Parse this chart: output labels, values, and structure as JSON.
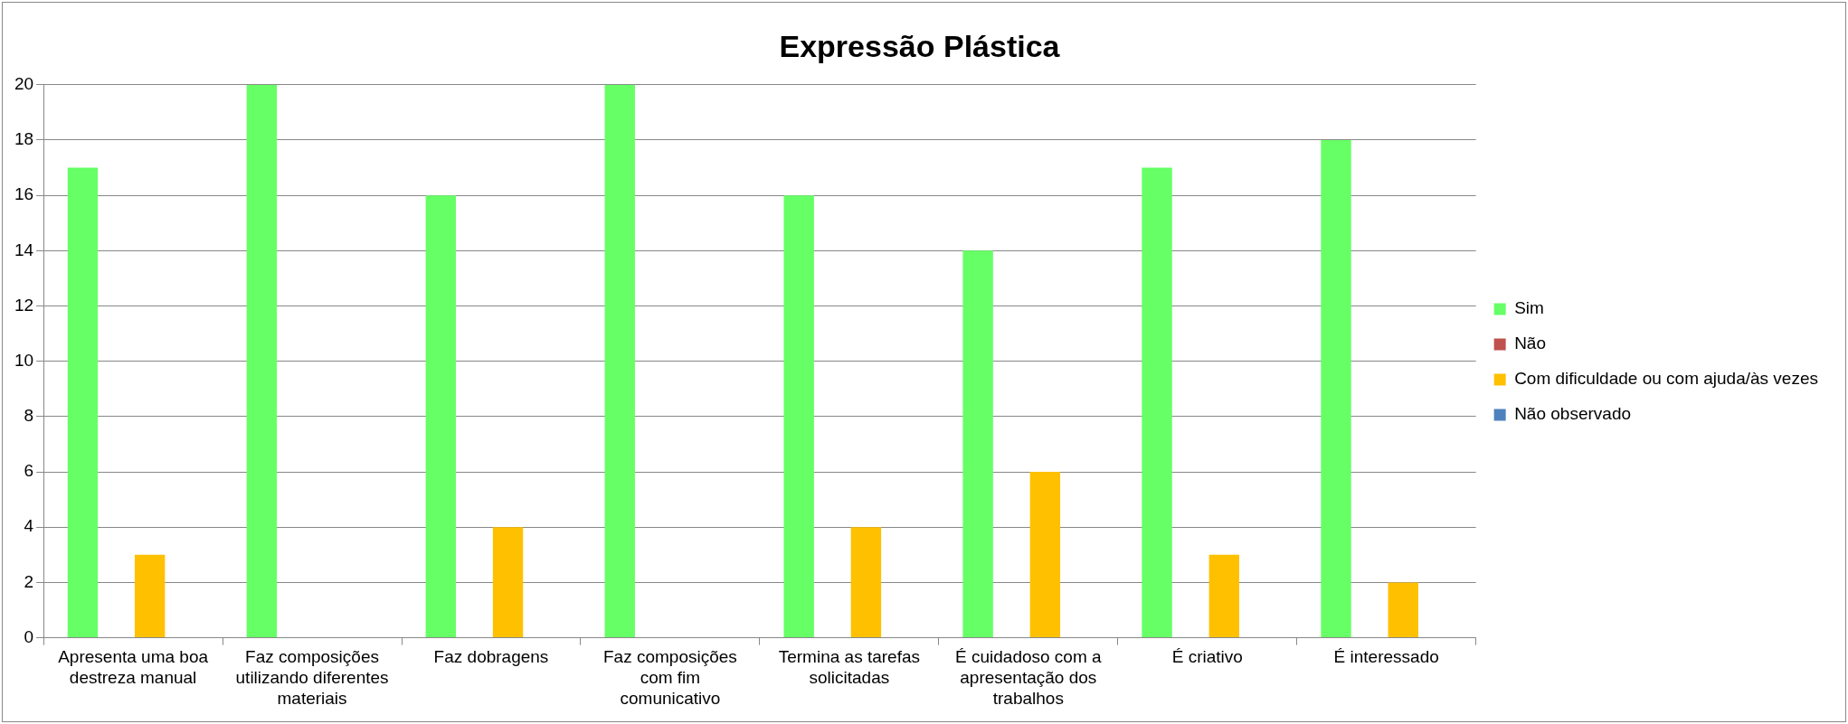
{
  "chart_data": {
    "type": "bar",
    "title": "Expressão Plástica",
    "categories": [
      "Apresenta uma boa destreza manual",
      "Faz composições utilizando diferentes materiais",
      "Faz dobragens",
      "Faz composições com fim comunicativo",
      "Termina as tarefas solicitadas",
      "É cuidadoso com a apresentação dos trabalhos",
      "É criativo",
      "É interessado"
    ],
    "series": [
      {
        "name": "Sim",
        "color": "#66ff66",
        "values": [
          17,
          20,
          16,
          20,
          16,
          14,
          17,
          18
        ]
      },
      {
        "name": "Não",
        "color": "#c0504d",
        "values": [
          0,
          0,
          0,
          0,
          0,
          0,
          0,
          0
        ]
      },
      {
        "name": "Com dificuldade ou com ajuda/às vezes",
        "color": "#ffc000",
        "values": [
          3,
          0,
          4,
          0,
          4,
          6,
          3,
          2
        ]
      },
      {
        "name": "Não observado",
        "color": "#4f81bd",
        "values": [
          0,
          0,
          0,
          0,
          0,
          0,
          0,
          0
        ]
      }
    ],
    "ylim": [
      0,
      20
    ],
    "yticks": [
      0,
      2,
      4,
      6,
      8,
      10,
      12,
      14,
      16,
      18,
      20
    ],
    "grid": "y",
    "legend": "right"
  }
}
